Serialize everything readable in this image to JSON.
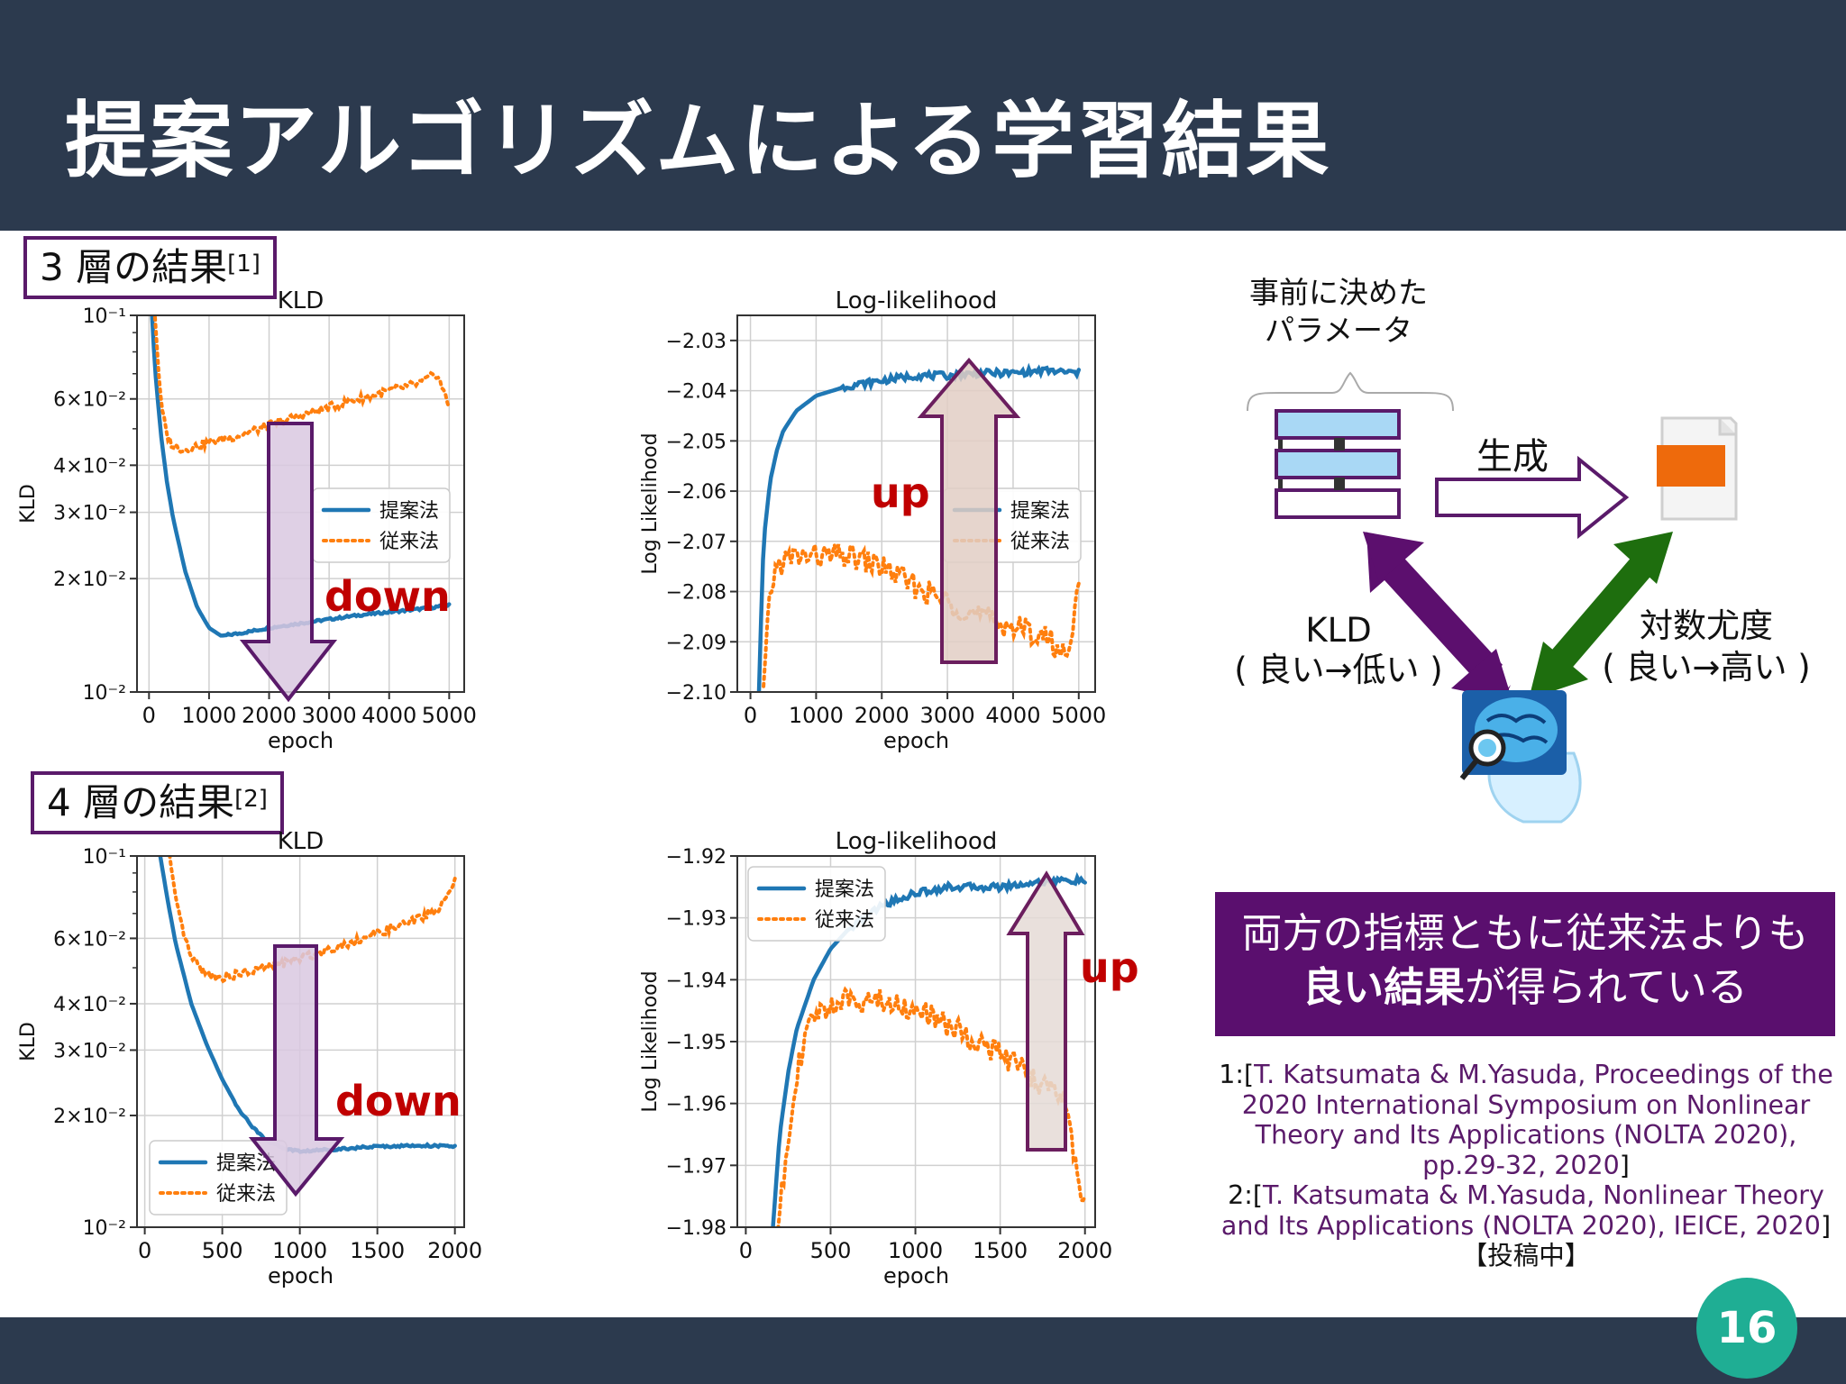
{
  "slide": {
    "title": "提案アルゴリズムによる学習結果",
    "page_number": "16",
    "section_3layer": {
      "text": "3 層の結果",
      "ref": "[1]"
    },
    "section_4layer": {
      "text": "4 層の結果",
      "ref": "[2]"
    },
    "annotations": {
      "down": "down",
      "up": "up"
    },
    "colors": {
      "header": "#2c3a4e",
      "purple": "#5a0f6e",
      "proposed": "#1f77b4",
      "conventional": "#ff7f0e",
      "annotation_red": "#c00000",
      "kld_arrow": "#5a1a6a",
      "ll_arrow": "#7a2a6a",
      "green": "#1e6e0e",
      "badge": "#1fae94"
    }
  },
  "diagram": {
    "params_label_line1": "事前に決めた",
    "params_label_line2": "パラメータ",
    "generate_label": "生成",
    "kld_label": "KLD",
    "kld_sub": "( 良い→低い )",
    "ll_label": "対数尤度",
    "ll_sub": "( 良い→高い )",
    "icons": [
      "network-layers-icon",
      "document-icon",
      "brain-magnifier-icon"
    ]
  },
  "summary": {
    "line1": "両方の指標ともに従来法よりも",
    "line2_bold": "良い結果",
    "line2_rest": "が得られている"
  },
  "references": {
    "r1_prefix": "1:[",
    "r1_body": "T. Katsumata & M.Yasuda, Proceedings of the 2020 International Symposium on Nonlinear Theory and Its Applications (NOLTA 2020), pp.29-32, 2020",
    "r1_suffix": "]",
    "r2_prefix": "2:[",
    "r2_body": "T. Katsumata & M.Yasuda, Nonlinear Theory and Its Applications (NOLTA 2020), IEICE, 2020",
    "r2_suffix": "]【投稿中】"
  },
  "chart_data": [
    {
      "id": "kld3",
      "type": "line",
      "title": "KLD",
      "xlabel": "epoch",
      "ylabel": "KLD",
      "yscale": "log",
      "xlim": [
        -200,
        5250
      ],
      "ylim": [
        0.01,
        0.1
      ],
      "xticks": [
        0,
        1000,
        2000,
        3000,
        4000,
        5000
      ],
      "yticks": [
        {
          "v": 0.1,
          "l": "10⁻¹"
        },
        {
          "v": 0.06,
          "l": "6×10⁻²"
        },
        {
          "v": 0.04,
          "l": "4×10⁻²"
        },
        {
          "v": 0.03,
          "l": "3×10⁻²"
        },
        {
          "v": 0.02,
          "l": "2×10⁻²"
        },
        {
          "v": 0.01,
          "l": "10⁻²"
        }
      ],
      "legend": "center-right",
      "series": [
        {
          "name": "提案法",
          "style": "solid",
          "x": [
            50,
            100,
            200,
            300,
            400,
            600,
            800,
            1000,
            1200,
            1500,
            2000,
            2500,
            3000,
            3500,
            4000,
            4500,
            5000
          ],
          "y": [
            0.1,
            0.072,
            0.048,
            0.036,
            0.029,
            0.021,
            0.0168,
            0.0148,
            0.0141,
            0.0143,
            0.0148,
            0.0152,
            0.0156,
            0.016,
            0.0163,
            0.0166,
            0.017
          ]
        },
        {
          "name": "従来法",
          "style": "dotted",
          "x": [
            100,
            150,
            200,
            300,
            400,
            600,
            800,
            1000,
            1500,
            2000,
            2500,
            3000,
            3500,
            4000,
            4500,
            4800,
            5000
          ],
          "y": [
            0.1,
            0.075,
            0.058,
            0.048,
            0.045,
            0.044,
            0.045,
            0.046,
            0.048,
            0.051,
            0.054,
            0.057,
            0.06,
            0.063,
            0.066,
            0.07,
            0.057
          ]
        }
      ]
    },
    {
      "id": "ll3",
      "type": "line",
      "title": "Log-likelihood",
      "xlabel": "epoch",
      "ylabel": "Log Likelihood",
      "yscale": "linear",
      "xlim": [
        -200,
        5250
      ],
      "ylim": [
        -2.1,
        -2.025
      ],
      "xticks": [
        0,
        1000,
        2000,
        3000,
        4000,
        5000
      ],
      "yticks": [
        {
          "v": -2.03,
          "l": "−2.03"
        },
        {
          "v": -2.04,
          "l": "−2.04"
        },
        {
          "v": -2.05,
          "l": "−2.05"
        },
        {
          "v": -2.06,
          "l": "−2.06"
        },
        {
          "v": -2.07,
          "l": "−2.07"
        },
        {
          "v": -2.08,
          "l": "−2.08"
        },
        {
          "v": -2.09,
          "l": "−2.09"
        },
        {
          "v": -2.1,
          "l": "−2.10"
        }
      ],
      "legend": "center-right",
      "series": [
        {
          "name": "提案法",
          "style": "solid",
          "x": [
            130,
            150,
            200,
            300,
            400,
            500,
            700,
            1000,
            1500,
            2000,
            2500,
            3000,
            3500,
            4000,
            4500,
            5000
          ],
          "y": [
            -2.1,
            -2.09,
            -2.07,
            -2.058,
            -2.052,
            -2.048,
            -2.044,
            -2.041,
            -2.039,
            -2.038,
            -2.037,
            -2.037,
            -2.0365,
            -2.0365,
            -2.036,
            -2.0365
          ]
        },
        {
          "name": "従来法",
          "style": "dotted",
          "x": [
            200,
            250,
            300,
            400,
            500,
            700,
            1000,
            1500,
            2000,
            2500,
            3000,
            3500,
            4000,
            4500,
            4800,
            5000
          ],
          "y": [
            -2.1,
            -2.09,
            -2.08,
            -2.075,
            -2.074,
            -2.073,
            -2.073,
            -2.073,
            -2.075,
            -2.079,
            -2.082,
            -2.085,
            -2.087,
            -2.089,
            -2.093,
            -2.08
          ]
        }
      ]
    },
    {
      "id": "kld4",
      "type": "line",
      "title": "KLD",
      "xlabel": "epoch",
      "ylabel": "KLD",
      "yscale": "log",
      "xlim": [
        -50,
        2060
      ],
      "ylim": [
        0.01,
        0.1
      ],
      "xticks": [
        0,
        500,
        1000,
        1500,
        2000
      ],
      "yticks": [
        {
          "v": 0.1,
          "l": "10⁻¹"
        },
        {
          "v": 0.06,
          "l": "6×10⁻²"
        },
        {
          "v": 0.04,
          "l": "4×10⁻²"
        },
        {
          "v": 0.03,
          "l": "3×10⁻²"
        },
        {
          "v": 0.02,
          "l": "2×10⁻²"
        },
        {
          "v": 0.01,
          "l": "10⁻²"
        }
      ],
      "legend": "lower-left",
      "series": [
        {
          "name": "提案法",
          "style": "solid",
          "x": [
            100,
            150,
            200,
            300,
            400,
            500,
            600,
            700,
            800,
            900,
            1000,
            1200,
            1500,
            1800,
            2000
          ],
          "y": [
            0.1,
            0.075,
            0.058,
            0.04,
            0.031,
            0.025,
            0.021,
            0.0185,
            0.017,
            0.0163,
            0.016,
            0.0162,
            0.0165,
            0.0166,
            0.0165
          ]
        },
        {
          "name": "従来法",
          "style": "dotted",
          "x": [
            160,
            200,
            250,
            300,
            400,
            500,
            700,
            1000,
            1300,
            1500,
            1700,
            1900,
            2000
          ],
          "y": [
            0.1,
            0.075,
            0.062,
            0.053,
            0.048,
            0.047,
            0.049,
            0.053,
            0.058,
            0.062,
            0.066,
            0.072,
            0.085
          ]
        }
      ]
    },
    {
      "id": "ll4",
      "type": "line",
      "title": "Log-likelihood",
      "xlabel": "epoch",
      "ylabel": "Log Likelihood",
      "yscale": "linear",
      "xlim": [
        -50,
        2060
      ],
      "ylim": [
        -1.98,
        -1.92
      ],
      "xticks": [
        0,
        500,
        1000,
        1500,
        2000
      ],
      "yticks": [
        {
          "v": -1.92,
          "l": "−1.92"
        },
        {
          "v": -1.93,
          "l": "−1.93"
        },
        {
          "v": -1.94,
          "l": "−1.94"
        },
        {
          "v": -1.95,
          "l": "−1.95"
        },
        {
          "v": -1.96,
          "l": "−1.96"
        },
        {
          "v": -1.97,
          "l": "−1.97"
        },
        {
          "v": -1.98,
          "l": "−1.98"
        }
      ],
      "legend": "upper-left",
      "series": [
        {
          "name": "提案法",
          "style": "solid",
          "x": [
            160,
            200,
            250,
            300,
            400,
            500,
            600,
            700,
            800,
            1000,
            1200,
            1500,
            1800,
            2000
          ],
          "y": [
            -1.98,
            -1.965,
            -1.955,
            -1.948,
            -1.94,
            -1.935,
            -1.932,
            -1.93,
            -1.928,
            -1.926,
            -1.925,
            -1.925,
            -1.924,
            -1.924
          ]
        },
        {
          "name": "従来法",
          "style": "dotted",
          "x": [
            190,
            250,
            300,
            350,
            400,
            500,
            700,
            900,
            1100,
            1300,
            1500,
            1700,
            1800,
            1900,
            1950,
            2000
          ],
          "y": [
            -1.98,
            -1.965,
            -1.955,
            -1.95,
            -1.946,
            -1.944,
            -1.943,
            -1.944,
            -1.946,
            -1.949,
            -1.952,
            -1.956,
            -1.958,
            -1.96,
            -1.972,
            -1.976
          ]
        }
      ]
    }
  ]
}
